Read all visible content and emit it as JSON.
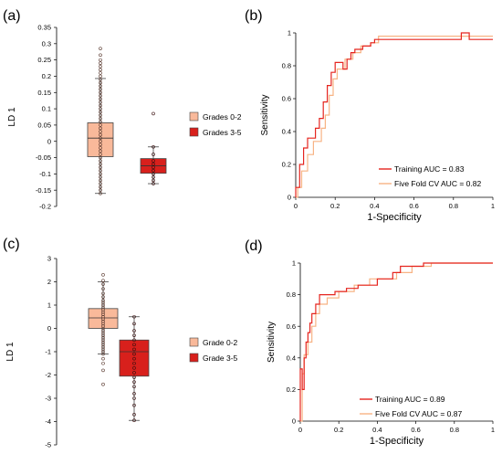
{
  "chart_data": [
    {
      "id": "a",
      "type": "box",
      "panel_label": "(a)",
      "ylabel": "LD 1",
      "ylim": [
        -0.2,
        0.35
      ],
      "yticks": [
        0.35,
        0.3,
        0.25,
        0.2,
        0.15,
        0.1,
        0.05,
        0,
        -0.05,
        -0.1,
        -0.15,
        -0.2
      ],
      "ytick_labels": [
        "0.35",
        "0.3",
        "0.25",
        "0.2",
        "0.15",
        "0.1",
        "0.05",
        "0",
        "-0.05",
        "-0.1",
        "-0.15",
        "-0.2"
      ],
      "legend": [
        "Grades 0-2",
        "Grades 3-5"
      ],
      "legend_position": "right",
      "colors": [
        "#f9b99a",
        "#d8201c"
      ],
      "boxes": [
        {
          "q1": -0.047,
          "median": 0.01,
          "q3": 0.057,
          "whisker_low": -0.16,
          "whisker_high": 0.193,
          "points": [
            0.285,
            0.265,
            0.25,
            0.24,
            0.23,
            0.22,
            0.21,
            0.2,
            0.19,
            0.18,
            0.17,
            0.16,
            0.15,
            0.14,
            0.13,
            0.12,
            0.11,
            0.1,
            0.09,
            0.08,
            0.07,
            0.06,
            0.05,
            0.04,
            0.03,
            0.02,
            0.01,
            0.0,
            -0.01,
            -0.02,
            -0.03,
            -0.04,
            -0.05,
            -0.06,
            -0.07,
            -0.08,
            -0.09,
            -0.1,
            -0.11,
            -0.12,
            -0.13,
            -0.14,
            -0.15,
            -0.16
          ]
        },
        {
          "q1": -0.098,
          "median": -0.075,
          "q3": -0.053,
          "whisker_low": -0.13,
          "whisker_high": -0.017,
          "points": [
            0.085,
            -0.017,
            -0.04,
            -0.06,
            -0.07,
            -0.08,
            -0.09,
            -0.1,
            -0.11,
            -0.12,
            -0.13
          ]
        }
      ]
    },
    {
      "id": "b",
      "type": "line",
      "panel_label": "(b)",
      "xlabel": "1-Specificity",
      "ylabel": "Sensitivity",
      "xlim": [
        0,
        1
      ],
      "ylim": [
        0,
        1
      ],
      "xticks": [
        0,
        0.2,
        0.4,
        0.6,
        0.8,
        1
      ],
      "xtick_labels": [
        "0",
        "0.2",
        "0.4",
        "0.6",
        "0.8",
        "1"
      ],
      "yticks": [
        0,
        0.2,
        0.4,
        0.6,
        0.8,
        1
      ],
      "ytick_labels": [
        "0",
        "0.2",
        "0.4",
        "0.6",
        "0.8",
        "1"
      ],
      "legend_position": "bottom-right",
      "series": [
        {
          "name": "Training AUC = 0.83",
          "color": "#e5251f",
          "x": [
            0,
            0,
            0.02,
            0.02,
            0.04,
            0.04,
            0.06,
            0.06,
            0.1,
            0.1,
            0.12,
            0.12,
            0.14,
            0.14,
            0.16,
            0.16,
            0.18,
            0.18,
            0.2,
            0.2,
            0.24,
            0.24,
            0.26,
            0.26,
            0.28,
            0.28,
            0.3,
            0.3,
            0.34,
            0.34,
            0.38,
            0.38,
            0.4,
            0.4,
            0.84,
            0.84,
            0.88,
            0.88,
            1
          ],
          "y": [
            0,
            0.06,
            0.06,
            0.2,
            0.2,
            0.3,
            0.3,
            0.36,
            0.36,
            0.42,
            0.42,
            0.48,
            0.48,
            0.58,
            0.58,
            0.68,
            0.68,
            0.76,
            0.76,
            0.82,
            0.82,
            0.78,
            0.78,
            0.84,
            0.84,
            0.88,
            0.88,
            0.9,
            0.9,
            0.92,
            0.92,
            0.94,
            0.94,
            0.96,
            0.96,
            1,
            1,
            0.96,
            0.96
          ]
        },
        {
          "name": "Five Fold CV AUC = 0.82",
          "color": "#f7b384",
          "x": [
            0,
            0.01,
            0.01,
            0.03,
            0.03,
            0.06,
            0.06,
            0.09,
            0.09,
            0.13,
            0.13,
            0.15,
            0.15,
            0.17,
            0.17,
            0.19,
            0.19,
            0.21,
            0.21,
            0.25,
            0.25,
            0.29,
            0.29,
            0.33,
            0.33,
            0.38,
            0.38,
            0.42,
            0.42,
            1
          ],
          "y": [
            0,
            0,
            0.06,
            0.06,
            0.16,
            0.16,
            0.26,
            0.26,
            0.34,
            0.34,
            0.42,
            0.42,
            0.5,
            0.5,
            0.62,
            0.62,
            0.72,
            0.72,
            0.78,
            0.78,
            0.84,
            0.84,
            0.88,
            0.88,
            0.92,
            0.92,
            0.94,
            0.94,
            0.98,
            0.98
          ]
        }
      ]
    },
    {
      "id": "c",
      "type": "box",
      "panel_label": "(c)",
      "ylabel": "LD 1",
      "ylim": [
        -5,
        3
      ],
      "yticks": [
        3,
        2,
        1,
        0,
        -1,
        -2,
        -3,
        -4,
        -5
      ],
      "ytick_labels": [
        "3",
        "2",
        "1",
        "0",
        "-1",
        "-2",
        "-3",
        "-4",
        "-5"
      ],
      "legend": [
        "Grade 0-2",
        "Grade 3-5"
      ],
      "legend_position": "right",
      "colors": [
        "#f9b99a",
        "#d8201c"
      ],
      "boxes": [
        {
          "q1": 0.0,
          "median": 0.45,
          "q3": 0.85,
          "whisker_low": -1.1,
          "whisker_high": 2.0,
          "points": [
            2.3,
            2.05,
            1.9,
            1.7,
            1.5,
            1.35,
            1.2,
            1.1,
            1.0,
            0.9,
            0.8,
            0.7,
            0.6,
            0.5,
            0.4,
            0.3,
            0.2,
            0.1,
            0.0,
            -0.1,
            -0.2,
            -0.3,
            -0.4,
            -0.5,
            -0.6,
            -0.7,
            -0.8,
            -0.9,
            -1.0,
            -1.1,
            -1.3,
            -1.5,
            -1.8,
            -2.4
          ]
        },
        {
          "q1": -2.05,
          "median": -1.0,
          "q3": -0.5,
          "whisker_low": -3.95,
          "whisker_high": 0.5,
          "points": [
            0.5,
            0.2,
            -0.1,
            -0.3,
            -0.5,
            -0.7,
            -0.9,
            -1.1,
            -1.3,
            -1.5,
            -1.7,
            -1.9,
            -2.1,
            -2.3,
            -2.5,
            -2.8,
            -3.0,
            -3.3,
            -3.7,
            -3.95
          ]
        }
      ]
    },
    {
      "id": "d",
      "type": "line",
      "panel_label": "(d)",
      "xlabel": "1-Specificity",
      "ylabel": "Sensitivity",
      "xlim": [
        0,
        1
      ],
      "ylim": [
        0,
        1
      ],
      "xticks": [
        0,
        0.2,
        0.4,
        0.6,
        0.8,
        1
      ],
      "xtick_labels": [
        "0",
        "0.2",
        "0.4",
        "0.6",
        "0.8",
        "1"
      ],
      "yticks": [
        0,
        0.2,
        0.4,
        0.6,
        0.8,
        1
      ],
      "ytick_labels": [
        "0",
        "0.2",
        "0.4",
        "0.6",
        "0.8",
        "1"
      ],
      "legend_position": "bottom-right",
      "series": [
        {
          "name": "Training AUC = 0.89",
          "color": "#e5251f",
          "x": [
            0,
            0,
            0.01,
            0.01,
            0.02,
            0.02,
            0.03,
            0.03,
            0.04,
            0.04,
            0.05,
            0.05,
            0.06,
            0.06,
            0.08,
            0.08,
            0.1,
            0.1,
            0.18,
            0.18,
            0.24,
            0.24,
            0.3,
            0.3,
            0.4,
            0.4,
            0.48,
            0.48,
            0.52,
            0.52,
            0.64,
            0.64,
            1
          ],
          "y": [
            0,
            0.33,
            0.33,
            0.2,
            0.2,
            0.4,
            0.4,
            0.5,
            0.5,
            0.56,
            0.56,
            0.62,
            0.62,
            0.68,
            0.68,
            0.74,
            0.74,
            0.8,
            0.8,
            0.82,
            0.82,
            0.84,
            0.84,
            0.86,
            0.86,
            0.9,
            0.9,
            0.94,
            0.94,
            0.98,
            0.98,
            1,
            1
          ]
        },
        {
          "name": "Five Fold CV AUC = 0.87",
          "color": "#f7b384",
          "x": [
            0,
            0.01,
            0.01,
            0.02,
            0.02,
            0.04,
            0.04,
            0.06,
            0.06,
            0.08,
            0.08,
            0.1,
            0.1,
            0.14,
            0.14,
            0.2,
            0.2,
            0.28,
            0.28,
            0.36,
            0.36,
            0.5,
            0.5,
            0.58,
            0.58,
            0.68,
            0.68,
            1
          ],
          "y": [
            0,
            0,
            0.3,
            0.3,
            0.42,
            0.42,
            0.5,
            0.5,
            0.6,
            0.6,
            0.68,
            0.68,
            0.74,
            0.74,
            0.78,
            0.78,
            0.82,
            0.82,
            0.86,
            0.86,
            0.9,
            0.9,
            0.94,
            0.94,
            0.98,
            0.98,
            1,
            1
          ]
        }
      ]
    }
  ]
}
